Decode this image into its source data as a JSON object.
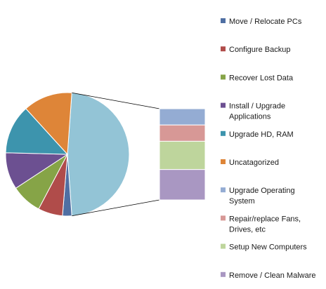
{
  "chart_data": {
    "type": "pie",
    "subtype": "pie-of-pie",
    "title": "",
    "slices": [
      {
        "label": "Move / Relocate PCs",
        "value": 1.5,
        "color": "#4f6fa3"
      },
      {
        "label": "Configure Backup",
        "value": 4.0,
        "color": "#b04c4a"
      },
      {
        "label": "Recover Lost Data",
        "value": 5.0,
        "color": "#86a447"
      },
      {
        "label": "Install / Upgrade Applications",
        "value": 6.0,
        "color": "#6c5091"
      },
      {
        "label": "Upgrade HD, RAM",
        "value": 8.0,
        "color": "#3d94ad"
      },
      {
        "label": "Uncatagorized",
        "value": 8.0,
        "color": "#de8538"
      },
      {
        "label": "Upgrade Operating System",
        "value": 5.3,
        "color": "#94acd3",
        "secondary": true
      },
      {
        "label": "Repair/replace Fans, Drives, etc",
        "value": 5.3,
        "color": "#d79896",
        "secondary": true
      },
      {
        "label": "Setup New Computers",
        "value": 9.2,
        "color": "#bed59c",
        "secondary": true
      },
      {
        "label": "Remove / Clean Malware",
        "value": 9.9,
        "color": "#a997c2",
        "secondary": true
      }
    ],
    "other_slice_color": "#93c4d6",
    "legend_position": "right"
  }
}
